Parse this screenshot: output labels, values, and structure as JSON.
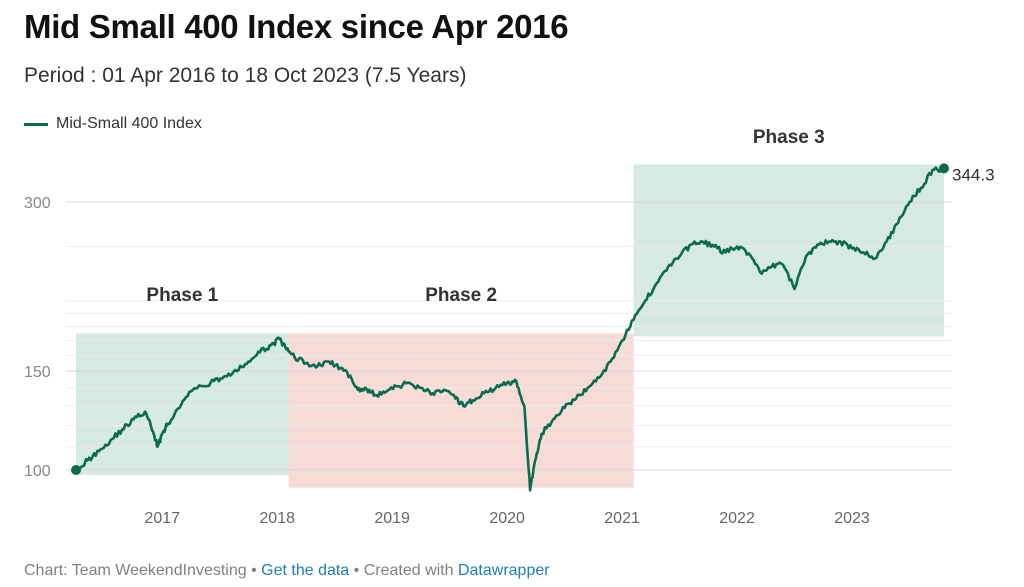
{
  "header": {
    "title": "Mid Small 400 Index since Apr 2016",
    "subtitle": "Period : 01 Apr 2016 to 18 Oct 2023 (7.5 Years)"
  },
  "legend": {
    "label": "Mid-Small 400 Index"
  },
  "footer": {
    "prefix": "Chart: Team WeekendInvesting • ",
    "get_data": "Get the data",
    "middle": " • Created with ",
    "datawrapper": "Datawrapper"
  },
  "chart_data": {
    "type": "line",
    "title": "Mid Small 400 Index since Apr 2016",
    "subtitle": "Period : 01 Apr 2016 to 18 Oct 2023 (7.5 Years)",
    "xlabel": "",
    "ylabel": "",
    "yscale": "log",
    "ylim": [
      96,
      350
    ],
    "xlim": [
      2016.25,
      2023.8
    ],
    "y_ticks": [
      100,
      150,
      300
    ],
    "y_tick_labels": [
      "100",
      "150",
      "300"
    ],
    "x_ticks": [
      2017,
      2018,
      2019,
      2020,
      2021,
      2022,
      2023
    ],
    "x_tick_labels": [
      "2017",
      "2018",
      "2019",
      "2020",
      "2021",
      "2022",
      "2023"
    ],
    "grid": "horizontal",
    "line_color": "#0b6b4e",
    "series": [
      {
        "name": "Mid-Small 400 Index",
        "x": [
          2016.25,
          2016.35,
          2016.45,
          2016.55,
          2016.65,
          2016.75,
          2016.85,
          2016.92,
          2016.96,
          2017.0,
          2017.05,
          2017.15,
          2017.25,
          2017.35,
          2017.45,
          2017.55,
          2017.65,
          2017.75,
          2017.85,
          2017.95,
          2018.02,
          2018.08,
          2018.15,
          2018.25,
          2018.35,
          2018.45,
          2018.55,
          2018.65,
          2018.72,
          2018.78,
          2018.85,
          2018.95,
          2019.05,
          2019.15,
          2019.25,
          2019.35,
          2019.45,
          2019.55,
          2019.62,
          2019.7,
          2019.8,
          2019.9,
          2020.0,
          2020.08,
          2020.15,
          2020.2,
          2020.25,
          2020.3,
          2020.4,
          2020.5,
          2020.6,
          2020.7,
          2020.8,
          2020.9,
          2021.0,
          2021.1,
          2021.2,
          2021.3,
          2021.4,
          2021.5,
          2021.6,
          2021.7,
          2021.8,
          2021.9,
          2022.0,
          2022.1,
          2022.2,
          2022.3,
          2022.4,
          2022.5,
          2022.6,
          2022.7,
          2022.8,
          2022.9,
          2023.0,
          2023.1,
          2023.2,
          2023.3,
          2023.4,
          2023.5,
          2023.6,
          2023.7,
          2023.8
        ],
        "values": [
          100,
          104,
          108,
          113,
          118,
          123,
          127,
          117,
          110,
          116,
          121,
          129,
          138,
          141,
          144,
          147,
          150,
          156,
          162,
          167,
          171,
          164,
          159,
          155,
          153,
          156,
          152,
          145,
          138,
          139,
          136,
          138,
          141,
          143,
          140,
          137,
          139,
          134,
          130,
          133,
          137,
          140,
          143,
          144,
          130,
          92,
          105,
          116,
          123,
          129,
          134,
          140,
          146,
          156,
          170,
          185,
          200,
          215,
          230,
          240,
          252,
          255,
          250,
          244,
          250,
          243,
          225,
          230,
          232,
          210,
          240,
          252,
          255,
          255,
          248,
          244,
          238,
          255,
          275,
          300,
          318,
          342,
          344.3
        ]
      }
    ],
    "end_value": 344.3,
    "end_label": "344.3",
    "phases": [
      {
        "label": "Phase 1",
        "x_start": 2016.25,
        "x_end": 2018.1,
        "y_low": 98,
        "y_high": 175,
        "color": "#d6e9e2"
      },
      {
        "label": "Phase 2",
        "x_start": 2018.1,
        "x_end": 2021.1,
        "y_low": 93,
        "y_high": 175,
        "color": "#f6dbd6"
      },
      {
        "label": "Phase 3",
        "x_start": 2021.1,
        "x_end": 2023.8,
        "y_low": 173,
        "y_high": 350,
        "color": "#d6e9e2"
      }
    ]
  }
}
